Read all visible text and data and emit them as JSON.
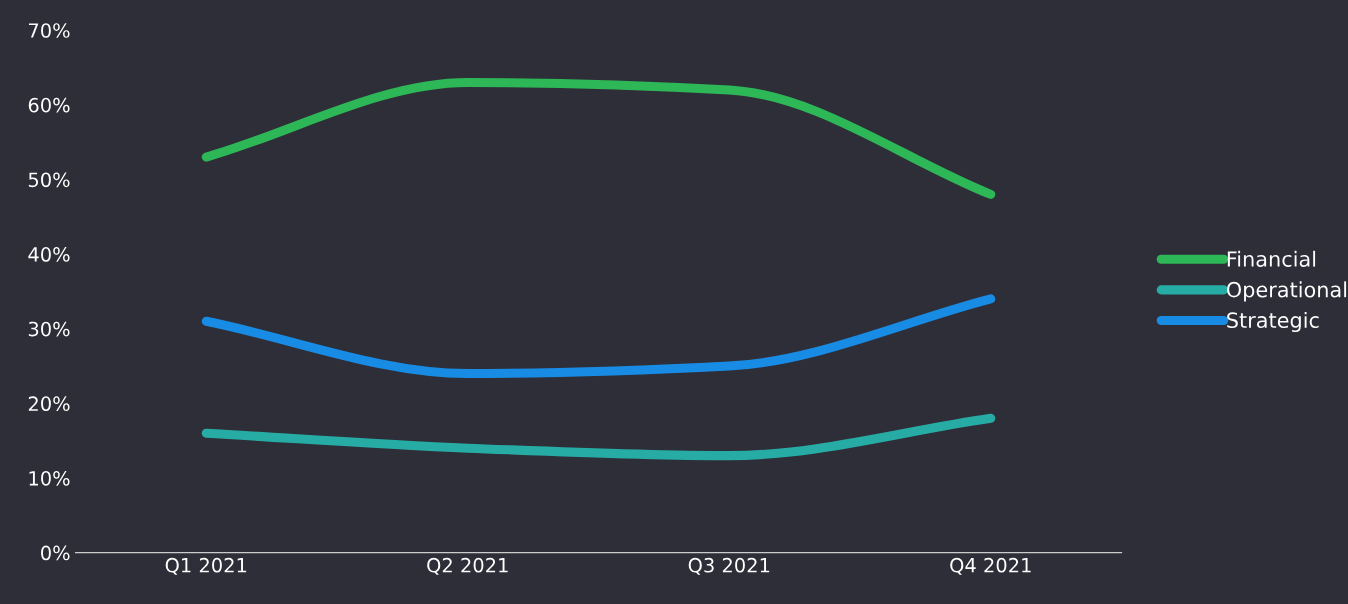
{
  "chart_data": {
    "type": "line",
    "categories": [
      "Q1 2021",
      "Q2 2021",
      "Q3 2021",
      "Q4 2021"
    ],
    "series": [
      {
        "name": "Financial",
        "color": "#2db757",
        "values": [
          53,
          63,
          62,
          48
        ]
      },
      {
        "name": "Operational",
        "color": "#27aba5",
        "values": [
          16,
          14,
          13,
          18
        ]
      },
      {
        "name": "Strategic",
        "color": "#188ce5",
        "values": [
          31,
          24,
          25,
          34
        ]
      }
    ],
    "ylim": [
      0,
      70
    ],
    "yticks": [
      {
        "value": 0,
        "label": "0%"
      },
      {
        "value": 10,
        "label": "10%"
      },
      {
        "value": 20,
        "label": "20%"
      },
      {
        "value": 30,
        "label": "30%"
      },
      {
        "value": 40,
        "label": "40%"
      },
      {
        "value": 50,
        "label": "50%"
      },
      {
        "value": 60,
        "label": "60%"
      },
      {
        "value": 70,
        "label": "70%"
      }
    ],
    "grid": false,
    "legend": "right",
    "marker": "none",
    "line_style": "solid"
  }
}
